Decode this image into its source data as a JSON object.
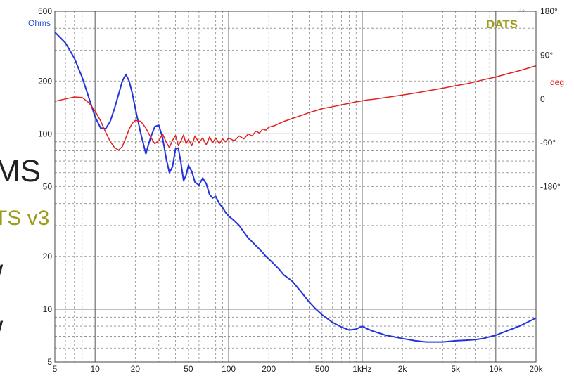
{
  "chart_data": {
    "type": "line",
    "brand": "DATS",
    "brand_sub": "t.i.e.",
    "x_scale": "log",
    "xlim": [
      5,
      20000
    ],
    "x_ticks": [
      {
        "v": 5,
        "label": "5"
      },
      {
        "v": 10,
        "label": "10"
      },
      {
        "v": 20,
        "label": "20"
      },
      {
        "v": 50,
        "label": "50"
      },
      {
        "v": 100,
        "label": "100"
      },
      {
        "v": 200,
        "label": "200"
      },
      {
        "v": 500,
        "label": "500"
      },
      {
        "v": 1000,
        "label": "1kHz"
      },
      {
        "v": 2000,
        "label": "2k"
      },
      {
        "v": 5000,
        "label": "5k"
      },
      {
        "v": 10000,
        "label": "10k"
      },
      {
        "v": 20000,
        "label": "20k"
      }
    ],
    "y_left": {
      "unit": "Ohms",
      "scale": "log",
      "lim": [
        5,
        500
      ],
      "ticks": [
        {
          "v": 500,
          "label": "500"
        },
        {
          "v": 200,
          "label": "200"
        },
        {
          "v": 100,
          "label": "100"
        },
        {
          "v": 50,
          "label": "50"
        },
        {
          "v": 20,
          "label": "20"
        },
        {
          "v": 10,
          "label": "10"
        },
        {
          "v": 5,
          "label": "5"
        }
      ]
    },
    "y_right": {
      "unit": "deg",
      "lim": [
        -540,
        180
      ],
      "ticks": [
        {
          "v": 180,
          "label": "180°"
        },
        {
          "v": 90,
          "label": "90°"
        },
        {
          "v": 0,
          "label": "0"
        },
        {
          "v": -90,
          "label": "-90°"
        },
        {
          "v": -180,
          "label": "-180°"
        }
      ]
    },
    "grid": true,
    "series": [
      {
        "color": "#2233dd",
        "axis": "left",
        "x": [
          5,
          6,
          7,
          8,
          9,
          10,
          11,
          12,
          13,
          14,
          15,
          16,
          17,
          18,
          19,
          20,
          22,
          24,
          26,
          28,
          30,
          32,
          34,
          36,
          38,
          40,
          42,
          44,
          46,
          48,
          50,
          53,
          56,
          60,
          64,
          68,
          72,
          76,
          80,
          85,
          90,
          95,
          100,
          110,
          120,
          130,
          140,
          150,
          160,
          170,
          180,
          190,
          200,
          220,
          240,
          260,
          280,
          300,
          350,
          400,
          450,
          500,
          600,
          700,
          800,
          900,
          1000,
          1100,
          1200,
          1500,
          2000,
          2500,
          3000,
          4000,
          5000,
          6000,
          7000,
          8000,
          10000,
          12000,
          15000,
          20000
        ],
        "y": [
          380,
          330,
          270,
          210,
          160,
          125,
          108,
          107,
          118,
          140,
          168,
          200,
          218,
          200,
          170,
          140,
          100,
          77,
          95,
          110,
          112,
          95,
          73,
          60,
          65,
          82,
          83,
          68,
          54,
          58,
          66,
          61,
          53,
          51,
          56,
          52,
          45,
          43,
          44,
          40,
          38,
          35.5,
          34,
          32,
          30,
          27.5,
          25.5,
          24.2,
          23,
          22,
          21,
          20,
          19.3,
          18,
          16.8,
          15.6,
          15,
          14.4,
          12.5,
          11,
          10,
          9.3,
          8.4,
          7.9,
          7.6,
          7.7,
          8.0,
          7.7,
          7.5,
          7.1,
          6.8,
          6.6,
          6.5,
          6.5,
          6.6,
          6.65,
          6.7,
          6.8,
          7.1,
          7.5,
          8.0,
          8.9
        ]
      },
      {
        "color": "#e02020",
        "axis": "right",
        "x": [
          5,
          6,
          7,
          8,
          9,
          10,
          11,
          12,
          13,
          14,
          15,
          16,
          17,
          18,
          19,
          20,
          22,
          24,
          26,
          28,
          30,
          32,
          34,
          36,
          38,
          40,
          42,
          44,
          46,
          48,
          50,
          53,
          56,
          60,
          64,
          68,
          72,
          76,
          80,
          85,
          90,
          95,
          100,
          110,
          120,
          130,
          140,
          150,
          160,
          170,
          180,
          190,
          200,
          220,
          240,
          260,
          280,
          300,
          350,
          400,
          450,
          500,
          600,
          700,
          800,
          900,
          1000,
          1100,
          1200,
          1500,
          2000,
          2500,
          3000,
          4000,
          5000,
          6000,
          7000,
          8000,
          10000,
          12000,
          15000,
          20000
        ],
        "y": [
          -5,
          0,
          4,
          3,
          -8,
          -25,
          -45,
          -68,
          -88,
          -100,
          -105,
          -98,
          -80,
          -62,
          -50,
          -44,
          -46,
          -60,
          -78,
          -92,
          -86,
          -72,
          -88,
          -100,
          -85,
          -75,
          -96,
          -86,
          -74,
          -92,
          -83,
          -96,
          -76,
          -90,
          -80,
          -94,
          -78,
          -90,
          -80,
          -92,
          -82,
          -88,
          -80,
          -86,
          -76,
          -82,
          -72,
          -76,
          -66,
          -70,
          -62,
          -64,
          -58,
          -55,
          -50,
          -46,
          -43,
          -40,
          -34,
          -28,
          -24,
          -20,
          -16,
          -12,
          -9,
          -6,
          -4,
          -2,
          -1,
          3,
          8,
          12,
          16,
          22,
          27,
          31,
          35,
          39,
          45,
          51,
          58,
          68
        ]
      }
    ]
  },
  "overlay_text": {
    "line1": "MS",
    "line2": "TS v3",
    "line3": "/",
    "line4": "/"
  }
}
